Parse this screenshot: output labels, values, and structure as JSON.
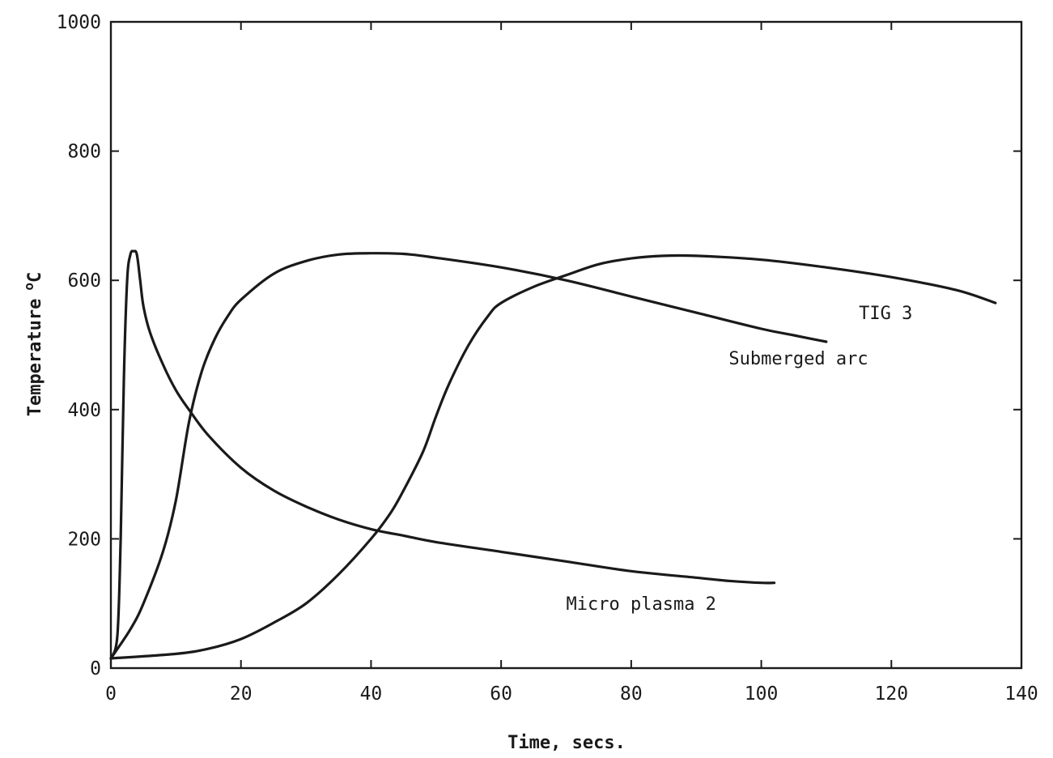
{
  "chart_data": {
    "type": "line",
    "title": "",
    "xlabel": "Time, secs.",
    "ylabel": "Temperature",
    "ylabel_unit_sup": "o",
    "ylabel_unit": "C",
    "xlim": [
      0,
      140
    ],
    "ylim": [
      0,
      1000
    ],
    "x_ticks": [
      0,
      20,
      40,
      60,
      80,
      100,
      120,
      140
    ],
    "x_tick_labels": [
      "0",
      "20",
      "40",
      "60",
      "80",
      "100",
      "120",
      "140"
    ],
    "y_ticks": [
      0,
      200,
      400,
      600,
      800,
      1000
    ],
    "y_tick_labels": [
      "0",
      "200",
      "400",
      "600",
      "800",
      "1000"
    ],
    "grid": false,
    "legend": "none (series labelled directly on plot)",
    "series": [
      {
        "name": "Micro plasma 2",
        "x": [
          0,
          1,
          1.5,
          2,
          2.5,
          3,
          3.5,
          4,
          4.5,
          5,
          6,
          8,
          10,
          12,
          15,
          20,
          25,
          30,
          35,
          40,
          45,
          50,
          60,
          70,
          80,
          90,
          95,
          100,
          102
        ],
        "y": [
          15,
          50,
          200,
          450,
          600,
          640,
          645,
          640,
          600,
          560,
          520,
          470,
          430,
          400,
          360,
          310,
          275,
          250,
          230,
          215,
          205,
          195,
          180,
          165,
          150,
          140,
          135,
          132,
          132
        ]
      },
      {
        "name": "Submerged arc",
        "x": [
          0,
          3,
          5,
          8,
          10,
          12,
          14,
          16,
          18,
          20,
          25,
          30,
          35,
          40,
          45,
          50,
          60,
          70,
          80,
          90,
          100,
          105,
          110
        ],
        "y": [
          15,
          60,
          100,
          180,
          260,
          380,
          460,
          510,
          545,
          570,
          610,
          630,
          640,
          642,
          641,
          635,
          620,
          600,
          575,
          550,
          525,
          515,
          505
        ]
      },
      {
        "name": "TIG 3",
        "x": [
          0,
          10,
          15,
          20,
          25,
          30,
          35,
          40,
          43,
          45,
          48,
          50,
          52,
          55,
          58,
          60,
          65,
          70,
          75,
          80,
          85,
          90,
          100,
          110,
          120,
          130,
          136
        ],
        "y": [
          15,
          22,
          30,
          45,
          70,
          100,
          145,
          200,
          240,
          275,
          335,
          390,
          440,
          500,
          545,
          565,
          590,
          608,
          625,
          634,
          638,
          638,
          632,
          620,
          605,
          585,
          565
        ]
      }
    ]
  }
}
